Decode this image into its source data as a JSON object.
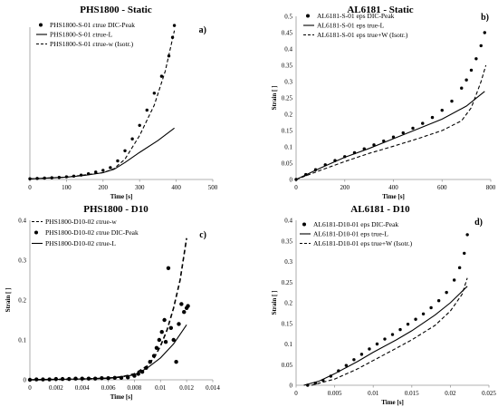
{
  "chart_data": [
    {
      "id": "a",
      "type": "line",
      "title": "PHS1800 - Static",
      "panel_label": "a)",
      "xlabel": "Time [s]",
      "ylabel": "",
      "xlim": [
        0,
        500
      ],
      "ylim": [
        0,
        0.45
      ],
      "xticks": [
        0,
        100,
        200,
        300,
        400,
        500
      ],
      "yticks": [],
      "legend_position": "top-right",
      "series": [
        {
          "name": "PHS1800-S-01 εtrue DIC-Peak",
          "style": "dots",
          "x": [
            0,
            20,
            40,
            60,
            80,
            100,
            120,
            140,
            160,
            180,
            200,
            220,
            240,
            260,
            280,
            300,
            320,
            340,
            360,
            380,
            390,
            395
          ],
          "y": [
            0.002,
            0.003,
            0.004,
            0.005,
            0.006,
            0.008,
            0.01,
            0.013,
            0.017,
            0.022,
            0.027,
            0.035,
            0.055,
            0.085,
            0.12,
            0.16,
            0.205,
            0.255,
            0.305,
            0.365,
            0.42,
            0.455
          ]
        },
        {
          "name": "PHS1800-S-01 εtrue-L",
          "style": "solid",
          "x": [
            0,
            100,
            150,
            200,
            230,
            260,
            300,
            350,
            395
          ],
          "y": [
            0.002,
            0.007,
            0.012,
            0.02,
            0.03,
            0.05,
            0.08,
            0.115,
            0.152
          ]
        },
        {
          "name": "PHS1800-S-01 εtrue-w (Isotr.)",
          "style": "dashed",
          "x": [
            0,
            100,
            200,
            230,
            260,
            300,
            340,
            370,
            395
          ],
          "y": [
            0.002,
            0.007,
            0.02,
            0.032,
            0.06,
            0.13,
            0.22,
            0.32,
            0.44
          ]
        }
      ]
    },
    {
      "id": "b",
      "type": "line",
      "title": "AL6181 - Static",
      "panel_label": "b)",
      "xlabel": "Time [s]",
      "ylabel": "Strain [ ]",
      "xlim": [
        0,
        800
      ],
      "ylim": [
        0,
        0.5
      ],
      "xticks": [
        0,
        200,
        400,
        600,
        800
      ],
      "yticks": [
        0,
        0.05,
        0.1,
        0.15,
        0.2,
        0.25,
        0.3,
        0.35,
        0.4,
        0.45,
        0.5
      ],
      "legend_position": "top-left",
      "series": [
        {
          "name": "AL6181-S-01 eps DIC-Peak",
          "style": "dots",
          "x": [
            0,
            40,
            80,
            120,
            160,
            200,
            240,
            280,
            320,
            360,
            400,
            440,
            480,
            520,
            560,
            600,
            640,
            680,
            700,
            720,
            740,
            760,
            775
          ],
          "y": [
            0.0,
            0.015,
            0.03,
            0.045,
            0.058,
            0.07,
            0.082,
            0.094,
            0.106,
            0.118,
            0.13,
            0.143,
            0.157,
            0.172,
            0.19,
            0.212,
            0.24,
            0.28,
            0.305,
            0.335,
            0.37,
            0.41,
            0.45
          ]
        },
        {
          "name": "AL6181-S-01 eps true-L",
          "style": "solid",
          "x": [
            0,
            100,
            200,
            300,
            400,
            500,
            600,
            700,
            775
          ],
          "y": [
            0.0,
            0.035,
            0.068,
            0.095,
            0.125,
            0.155,
            0.185,
            0.225,
            0.27
          ]
        },
        {
          "name": "AL6181-S-01 eps true+W (Isotr.)",
          "style": "dashed",
          "x": [
            0,
            100,
            200,
            300,
            400,
            500,
            600,
            680,
            720,
            760,
            780
          ],
          "y": [
            0.0,
            0.028,
            0.055,
            0.08,
            0.102,
            0.125,
            0.15,
            0.18,
            0.22,
            0.3,
            0.35
          ]
        }
      ]
    },
    {
      "id": "c",
      "type": "line",
      "title": "PHS1800 - D10",
      "panel_label": "c)",
      "xlabel": "Time [s]",
      "ylabel": "Strain [ ]",
      "xlim": [
        0,
        0.014
      ],
      "ylim": [
        0,
        0.4
      ],
      "xticks": [
        0,
        0.002,
        0.004,
        0.006,
        0.008,
        0.01,
        0.012,
        0.014
      ],
      "yticks": [
        0,
        0.1,
        0.2,
        0.3,
        0.4
      ],
      "legend_position": "top-left",
      "series": [
        {
          "name": "PHS1800-D10-02 εtrue-w",
          "style": "dashed",
          "x": [
            0,
            0.002,
            0.004,
            0.006,
            0.007,
            0.008,
            0.009,
            0.0095,
            0.01,
            0.0105,
            0.011,
            0.0115,
            0.012
          ],
          "y": [
            0.0,
            0.001,
            0.002,
            0.004,
            0.007,
            0.015,
            0.035,
            0.055,
            0.085,
            0.125,
            0.18,
            0.25,
            0.355
          ]
        },
        {
          "name": "PHS1800-D10-02 εtrue DIC-Peak",
          "style": "dots",
          "x": [
            0,
            0.0005,
            0.001,
            0.0015,
            0.002,
            0.0025,
            0.003,
            0.0035,
            0.004,
            0.0045,
            0.005,
            0.0055,
            0.006,
            0.0065,
            0.007,
            0.0075,
            0.008,
            0.0083,
            0.0086,
            0.0089,
            0.0092,
            0.0095,
            0.0097,
            0.0099,
            0.0101,
            0.0103,
            0.0104,
            0.0106,
            0.0108,
            0.011,
            0.0112,
            0.0114,
            0.0116,
            0.0118,
            0.012,
            0.0121
          ],
          "y": [
            0,
            0.001,
            0.001,
            0.001,
            0.002,
            0.002,
            0.002,
            0.003,
            0.003,
            0.003,
            0.003,
            0.004,
            0.004,
            0.005,
            0.005,
            0.006,
            0.01,
            0.015,
            0.02,
            0.03,
            0.045,
            0.06,
            0.08,
            0.1,
            0.12,
            0.15,
            0.095,
            0.28,
            0.13,
            0.1,
            0.045,
            0.14,
            0.19,
            0.17,
            0.18,
            0.185
          ]
        },
        {
          "name": "PHS1800-D10-02 εtrue-L",
          "style": "solid",
          "x": [
            0,
            0.004,
            0.006,
            0.008,
            0.009,
            0.01,
            0.011,
            0.012
          ],
          "y": [
            0.0,
            0.002,
            0.004,
            0.012,
            0.03,
            0.055,
            0.09,
            0.138
          ]
        }
      ]
    },
    {
      "id": "d",
      "type": "line",
      "title": "AL6181 - D10",
      "panel_label": "d)",
      "xlabel": "Time [s]",
      "ylabel": "Strain [ ]",
      "xlim": [
        0,
        0.025
      ],
      "ylim": [
        0,
        0.4
      ],
      "xticks": [
        0,
        0.005,
        0.01,
        0.015,
        0.02,
        0.025
      ],
      "yticks": [
        0,
        0.05,
        0.1,
        0.15,
        0.2,
        0.25,
        0.3,
        0.35,
        0.4
      ],
      "legend_position": "top-left",
      "series": [
        {
          "name": "AL6181-D10-01 eps DIC-Peak",
          "style": "dots",
          "x": [
            0.0015,
            0.0025,
            0.0035,
            0.0045,
            0.0055,
            0.0065,
            0.0075,
            0.0085,
            0.0095,
            0.0105,
            0.0115,
            0.0125,
            0.0135,
            0.0145,
            0.0155,
            0.0165,
            0.0175,
            0.0185,
            0.0195,
            0.0205,
            0.0212,
            0.0218,
            0.0222
          ],
          "y": [
            0.0,
            0.005,
            0.012,
            0.022,
            0.035,
            0.048,
            0.062,
            0.075,
            0.088,
            0.1,
            0.112,
            0.123,
            0.135,
            0.148,
            0.16,
            0.173,
            0.188,
            0.205,
            0.225,
            0.255,
            0.285,
            0.32,
            0.365
          ]
        },
        {
          "name": "AL6181-D10-01 eps true-L",
          "style": "solid",
          "x": [
            0.001,
            0.003,
            0.005,
            0.008,
            0.01,
            0.013,
            0.015,
            0.018,
            0.02,
            0.0222
          ],
          "y": [
            0.0,
            0.01,
            0.028,
            0.058,
            0.08,
            0.11,
            0.132,
            0.17,
            0.2,
            0.24
          ]
        },
        {
          "name": "AL6181-D10-01 eps true+W (Isotr.)",
          "style": "dashed",
          "x": [
            0.002,
            0.005,
            0.008,
            0.01,
            0.013,
            0.015,
            0.018,
            0.02,
            0.0215,
            0.0222
          ],
          "y": [
            0.0,
            0.015,
            0.04,
            0.06,
            0.09,
            0.11,
            0.145,
            0.18,
            0.22,
            0.26
          ]
        }
      ]
    }
  ]
}
